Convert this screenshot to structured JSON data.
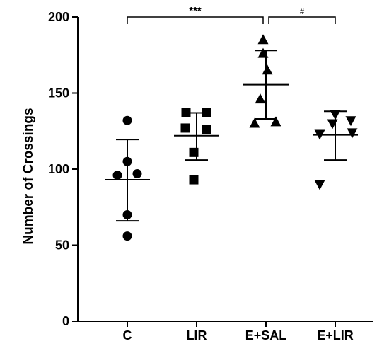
{
  "chart_data": {
    "type": "scatter",
    "ylabel": "Number of Crossings",
    "xlabel": "",
    "ylim": [
      0,
      200
    ],
    "yticks": [
      0,
      50,
      100,
      150,
      200
    ],
    "categories": [
      "C",
      "LIR",
      "E+SAL",
      "E+LIR"
    ],
    "series": [
      {
        "category": "C",
        "marker": "circle",
        "points": [
          132,
          105,
          96,
          97,
          70,
          56
        ],
        "mean": 93,
        "sd_upper": 119.5,
        "sd_lower": 66
      },
      {
        "category": "LIR",
        "marker": "square",
        "points": [
          137,
          137,
          127,
          126,
          111,
          93
        ],
        "mean": 122,
        "sd_upper": 137,
        "sd_lower": 106
      },
      {
        "category": "E+SAL",
        "marker": "triangle-up",
        "points": [
          185,
          176,
          165,
          146,
          130,
          131
        ],
        "mean": 155.5,
        "sd_upper": 178,
        "sd_lower": 133
      },
      {
        "category": "E+LIR",
        "marker": "triangle-down",
        "points": [
          136,
          132,
          123,
          130,
          124,
          90
        ],
        "mean": 122.5,
        "sd_upper": 138,
        "sd_lower": 106
      }
    ],
    "significance": [
      {
        "from": "C",
        "to": "E+SAL",
        "label": "***"
      },
      {
        "from": "E+SAL",
        "to": "E+LIR",
        "label": "#"
      }
    ],
    "colors": {
      "marker": "#000000",
      "axis": "#000000"
    }
  }
}
